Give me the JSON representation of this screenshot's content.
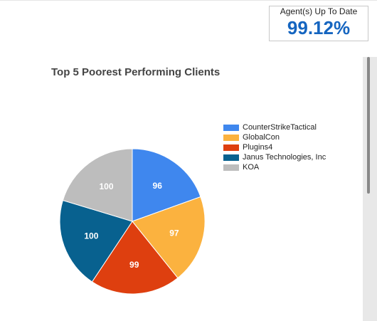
{
  "kpi": {
    "label": "Agent(s) Up To Date",
    "value": "99.12%",
    "value_color": "#1565c0"
  },
  "chart_data": {
    "type": "pie",
    "title": "Top 5 Poorest Performing Clients",
    "legend_position": "right",
    "slices": [
      {
        "name": "CounterStrikeTactical",
        "value": 96,
        "color": "#3f87ee"
      },
      {
        "name": "GlobalCon",
        "value": 97,
        "color": "#fbb23f"
      },
      {
        "name": "Plugins4",
        "value": 99,
        "color": "#de3f0f"
      },
      {
        "name": "Janus Technologies, Inc",
        "value": 100,
        "color": "#08618f"
      },
      {
        "name": "KOA",
        "value": 100,
        "color": "#bdbdbd"
      }
    ]
  }
}
